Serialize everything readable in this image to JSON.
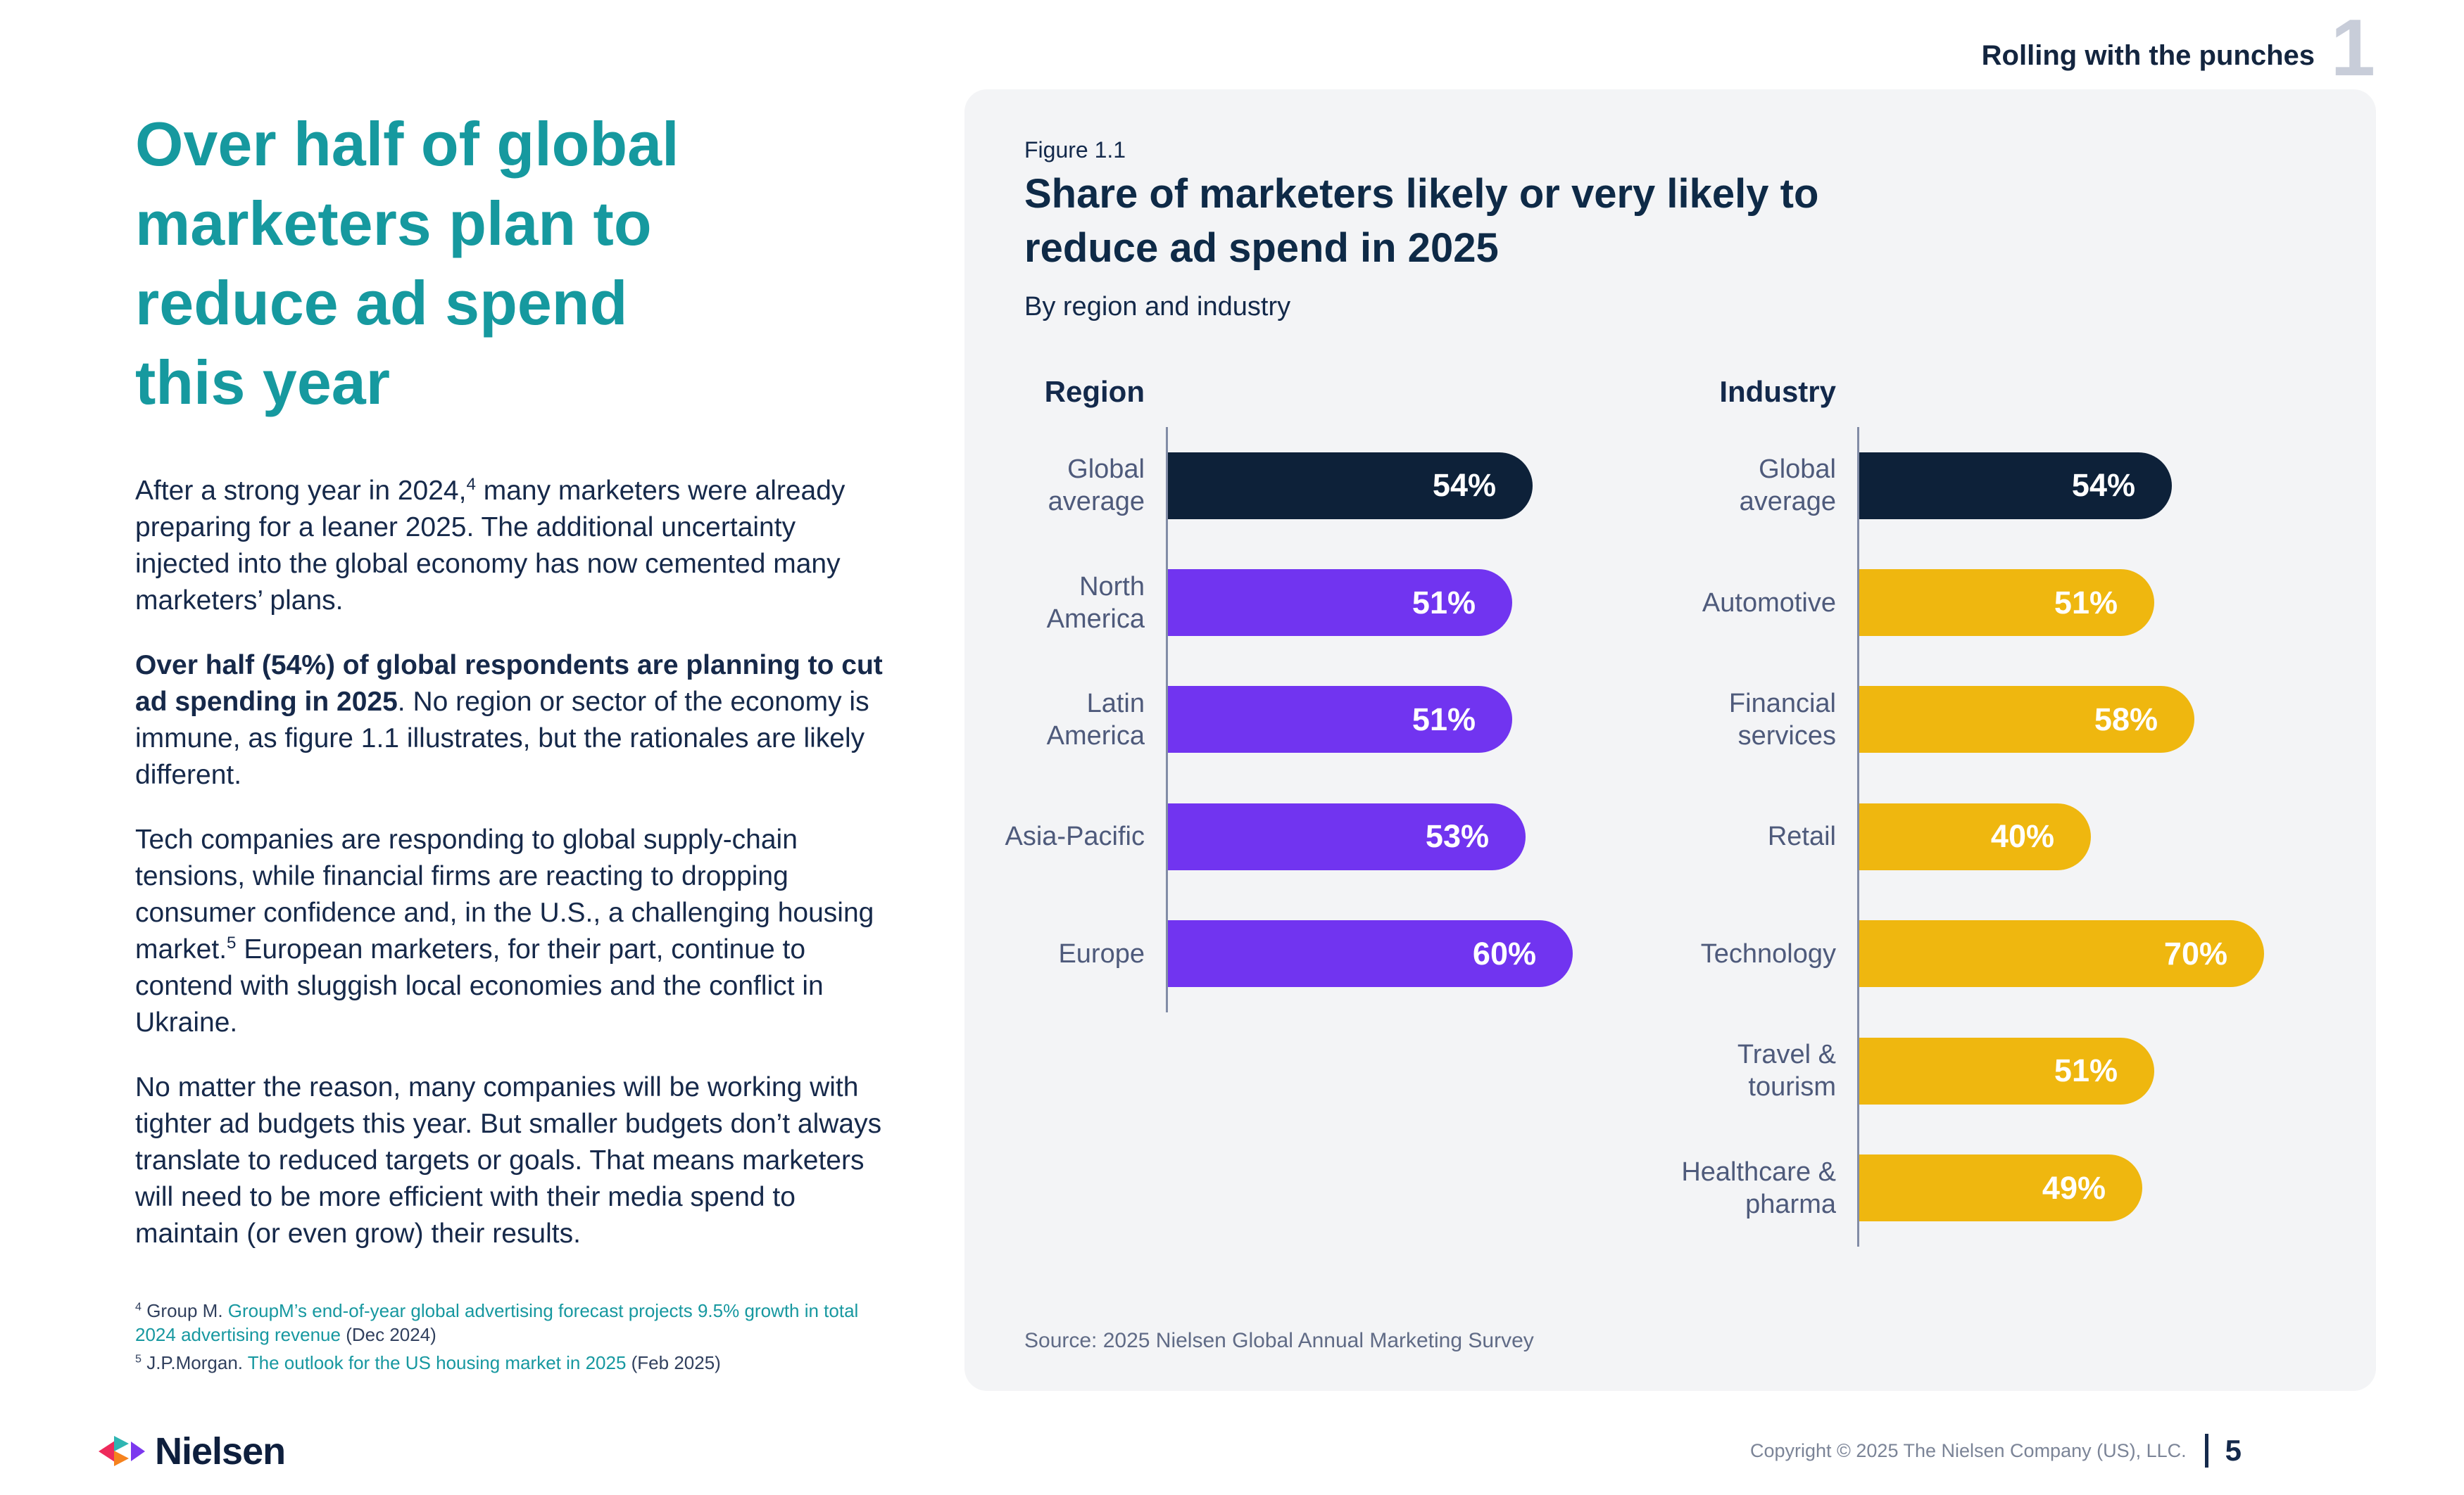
{
  "page": {
    "chapter_header": "Rolling with the punches",
    "chapter_number": "1"
  },
  "article": {
    "heading_lines": [
      "Over half of global",
      "marketers plan to",
      "reduce ad spend",
      "this year"
    ],
    "paragraphs": [
      {
        "segments": [
          {
            "t": "After a strong year in 2024,"
          },
          {
            "t": "4",
            "sup": true
          },
          {
            "t": " many marketers were already preparing for a leaner 2025. The additional uncertainty injected into the global economy has now cemented many marketers’ plans."
          }
        ]
      },
      {
        "segments": [
          {
            "t": "Over half (54%) of global respondents are planning to cut ad spending in 2025",
            "b": true
          },
          {
            "t": ". No region or sector of the economy is immune, as figure 1.1 illustrates, but the rationales are likely different."
          }
        ]
      },
      {
        "segments": [
          {
            "t": "Tech companies are responding to global supply-chain tensions, while financial firms are reacting to dropping consumer confidence and, in the U.S., a challenging housing market."
          },
          {
            "t": "5",
            "sup": true
          },
          {
            "t": " European marketers, for their part, continue to contend with sluggish local economies and the conflict in Ukraine."
          }
        ]
      },
      {
        "segments": [
          {
            "t": "No matter the reason, many companies will be working with tighter ad budgets this year. But smaller budgets don’t always translate to reduced targets or goals. That means marketers will need to be more efficient with their media spend to maintain (or even grow) their results."
          }
        ]
      }
    ],
    "footnotes": [
      {
        "segments": [
          {
            "t": "4",
            "sup": true
          },
          {
            "t": " Group M. "
          },
          {
            "t": "GroupM’s end-of-year global advertising forecast projects 9.5% growth in total 2024 advertising revenue",
            "link": true
          },
          {
            "t": " (Dec 2024)"
          }
        ]
      },
      {
        "segments": [
          {
            "t": "5",
            "sup": true
          },
          {
            "t": " J.P.Morgan. "
          },
          {
            "t": "The outlook for the US housing market in 2025",
            "link": true
          },
          {
            "t": " (Feb 2025)"
          }
        ]
      }
    ]
  },
  "figure": {
    "label": "Figure 1.1",
    "title_lines": [
      "Share of marketers likely or very likely to",
      "reduce ad spend in 2025"
    ],
    "subtitle": "By region and industry",
    "source": "Source: 2025 Nielsen Global Annual Marketing Survey"
  },
  "chart_data": [
    {
      "type": "bar",
      "orientation": "horizontal",
      "group": "Region",
      "unit": "%",
      "categories": [
        "Global\naverage",
        "North\nAmerica",
        "Latin\nAmerica",
        "Asia-Pacific",
        "Europe"
      ],
      "values": [
        54,
        51,
        51,
        53,
        60
      ],
      "colors": [
        "#0D2139",
        "#7134F0",
        "#7134F0",
        "#7134F0",
        "#7134F0"
      ],
      "xlim": [
        0,
        60
      ],
      "value_labels": [
        "54%",
        "51%",
        "51%",
        "53%",
        "60%"
      ],
      "grid": false,
      "legend": "none"
    },
    {
      "type": "bar",
      "orientation": "horizontal",
      "group": "Industry",
      "unit": "%",
      "categories": [
        "Global\naverage",
        "Automotive",
        "Financial\nservices",
        "Retail",
        "Technology",
        "Travel &\ntourism",
        "Healthcare &\npharma"
      ],
      "values": [
        54,
        51,
        58,
        40,
        70,
        51,
        49
      ],
      "colors": [
        "#0D2139",
        "#EFB70F",
        "#EFB70F",
        "#EFB70F",
        "#EFB70F",
        "#EFB70F",
        "#EFB70F"
      ],
      "xlim": [
        0,
        70
      ],
      "value_labels": [
        "54%",
        "51%",
        "58%",
        "40%",
        "70%",
        "51%",
        "49%"
      ],
      "grid": false,
      "legend": "none"
    }
  ],
  "footer": {
    "brand": "Nielsen",
    "copyright": "Copyright © 2025 The Nielsen Company (US), LLC.",
    "page_number": "5"
  },
  "colors": {
    "accent_teal": "#16999F",
    "navy_text": "#13294B",
    "bar_navy": "#0D2139",
    "bar_purple": "#7134F0",
    "bar_yellow": "#EFB70F",
    "card_bg": "#F3F4F6",
    "axis": "#828CA6",
    "category_label": "#4E5A7B",
    "chapter_number_gray": "#C8CDD9",
    "link_teal": "#1798A0"
  }
}
